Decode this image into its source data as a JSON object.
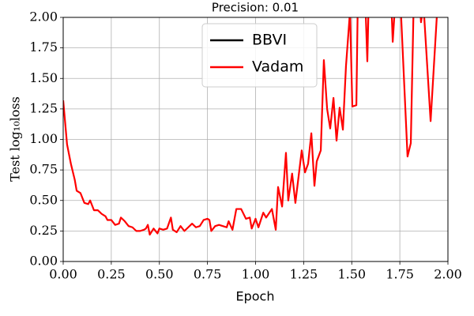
{
  "chart_data": {
    "type": "line",
    "title": "Precision: 0.01",
    "xlabel": "Epoch",
    "ylabel": "Test log₁₀loss",
    "xlim": [
      0,
      2
    ],
    "ylim": [
      0,
      2
    ],
    "grid": true,
    "legend": "upper center",
    "xticks": [
      {
        "value": 0,
        "label": "0.00"
      },
      {
        "value": 0.25,
        "label": "0.25"
      },
      {
        "value": 0.5,
        "label": "0.50"
      },
      {
        "value": 0.75,
        "label": "0.75"
      },
      {
        "value": 1,
        "label": "1.00"
      },
      {
        "value": 1.25,
        "label": "1.25"
      },
      {
        "value": 1.5,
        "label": "1.50"
      },
      {
        "value": 1.75,
        "label": "1.75"
      },
      {
        "value": 2,
        "label": "2.00"
      }
    ],
    "yticks": [
      {
        "value": 0,
        "label": "0.00"
      },
      {
        "value": 0.25,
        "label": "0.25"
      },
      {
        "value": 0.5,
        "label": "0.50"
      },
      {
        "value": 0.75,
        "label": "0.75"
      },
      {
        "value": 1,
        "label": "1.00"
      },
      {
        "value": 1.25,
        "label": "1.25"
      },
      {
        "value": 1.5,
        "label": "1.50"
      },
      {
        "value": 1.75,
        "label": "1.75"
      },
      {
        "value": 2,
        "label": "2.00"
      }
    ],
    "series": [
      {
        "name": "BBVI",
        "color": "#000000",
        "x": [],
        "values": []
      },
      {
        "name": "Vadam",
        "color": "#ff0000",
        "x": [
          0,
          0.02,
          0.04,
          0.06,
          0.07,
          0.09,
          0.11,
          0.13,
          0.14,
          0.16,
          0.18,
          0.2,
          0.22,
          0.23,
          0.25,
          0.27,
          0.29,
          0.3,
          0.32,
          0.34,
          0.36,
          0.38,
          0.4,
          0.42,
          0.43,
          0.44,
          0.45,
          0.47,
          0.49,
          0.5,
          0.52,
          0.54,
          0.56,
          0.57,
          0.59,
          0.61,
          0.63,
          0.65,
          0.67,
          0.69,
          0.71,
          0.73,
          0.75,
          0.76,
          0.77,
          0.79,
          0.81,
          0.83,
          0.85,
          0.86,
          0.88,
          0.9,
          0.925,
          0.95,
          0.97,
          0.98,
          1.0,
          1.015,
          1.04,
          1.055,
          1.085,
          1.105,
          1.117,
          1.138,
          1.158,
          1.17,
          1.19,
          1.207,
          1.24,
          1.257,
          1.273,
          1.29,
          1.306,
          1.318,
          1.339,
          1.355,
          1.372,
          1.388,
          1.405,
          1.421,
          1.437,
          1.454,
          1.47,
          1.491,
          1.503,
          1.524,
          1.532,
          1.569,
          1.581,
          1.589,
          1.704,
          1.713,
          1.729,
          1.754,
          1.79,
          1.807,
          1.823,
          1.852,
          1.86,
          1.873,
          1.91,
          1.942
        ],
        "values": [
          1.32,
          0.96,
          0.8,
          0.67,
          0.58,
          0.56,
          0.48,
          0.47,
          0.5,
          0.42,
          0.42,
          0.39,
          0.37,
          0.34,
          0.34,
          0.3,
          0.31,
          0.36,
          0.33,
          0.29,
          0.28,
          0.25,
          0.25,
          0.26,
          0.27,
          0.3,
          0.22,
          0.27,
          0.23,
          0.27,
          0.26,
          0.27,
          0.36,
          0.26,
          0.24,
          0.29,
          0.25,
          0.28,
          0.31,
          0.28,
          0.29,
          0.34,
          0.35,
          0.34,
          0.25,
          0.29,
          0.3,
          0.29,
          0.28,
          0.33,
          0.26,
          0.43,
          0.43,
          0.35,
          0.36,
          0.27,
          0.35,
          0.28,
          0.4,
          0.36,
          0.43,
          0.26,
          0.61,
          0.45,
          0.89,
          0.5,
          0.72,
          0.48,
          0.91,
          0.73,
          0.8,
          1.05,
          0.62,
          0.82,
          0.91,
          1.65,
          1.25,
          1.09,
          1.34,
          0.99,
          1.26,
          1.08,
          1.6,
          2.05,
          1.27,
          1.28,
          2.2,
          2.2,
          1.64,
          2.2,
          2.2,
          1.8,
          2.2,
          2.1,
          0.86,
          0.97,
          2.2,
          2.2,
          1.96,
          2.1,
          1.15,
          2.0
        ]
      }
    ]
  }
}
